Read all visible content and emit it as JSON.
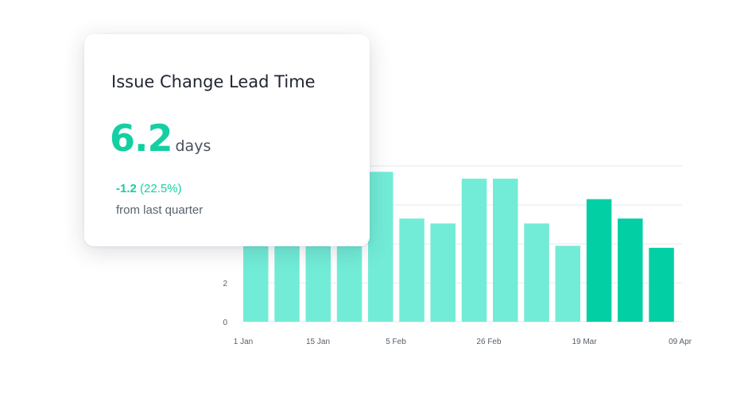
{
  "card": {
    "title": "Issue Change Lead Time",
    "value": "6.2",
    "unit": "days",
    "change_value": "-1.2",
    "change_pct": "(22.5%)",
    "change_note": "from last quarter"
  },
  "colors": {
    "accent": "#14cfa2",
    "bar_light": "#72ecd7",
    "bar_dark": "#03cfa5",
    "grid": "#e6e8ec"
  },
  "chart_data": {
    "type": "bar",
    "x_tick_labels": [
      "1 Jan",
      "15 Jan",
      "5 Feb",
      "26 Feb",
      "19 Mar",
      "09 Apr"
    ],
    "y_tick_labels": [
      "0",
      "2"
    ],
    "ylim": [
      0,
      8
    ],
    "grid": true,
    "values": [
      3.9,
      3.9,
      3.9,
      3.9,
      7.7,
      5.3,
      5.05,
      7.35,
      7.35,
      5.05,
      3.9,
      6.3,
      5.3,
      3.8
    ],
    "highlight": [
      false,
      false,
      false,
      false,
      false,
      false,
      false,
      false,
      false,
      false,
      false,
      true,
      true,
      true
    ]
  }
}
